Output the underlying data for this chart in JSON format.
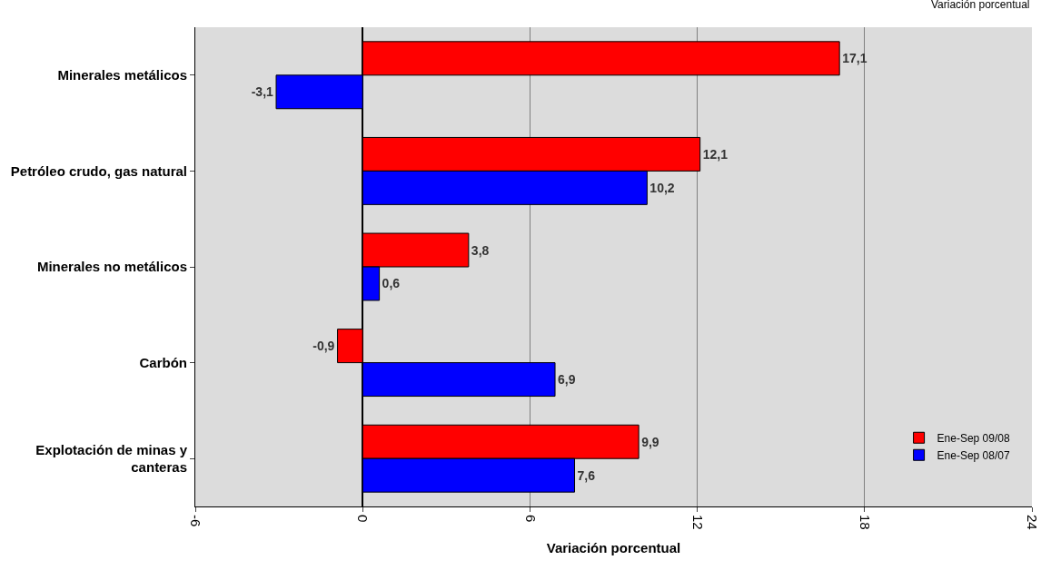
{
  "chart_data": {
    "type": "bar",
    "orientation": "horizontal",
    "xlabel": "Variación porcentual",
    "annotations": [
      "Variación porcentual"
    ],
    "categories": [
      "Minerales metálicos",
      "Petróleo crudo, gas natural",
      "Minerales no metálicos",
      "Carbón",
      "Explotación de minas y canteras"
    ],
    "series": [
      {
        "name": "Ene-Sep 09/08",
        "color": "#ff0000",
        "values": [
          17.1,
          12.1,
          3.8,
          -0.9,
          9.9
        ],
        "value_labels": [
          "17,1",
          "12,1",
          "3,8",
          "-0,9",
          "9,9"
        ]
      },
      {
        "name": "Ene-Sep 08/07",
        "color": "#0000ff",
        "values": [
          -3.1,
          10.2,
          0.6,
          6.9,
          7.6
        ],
        "value_labels": [
          "-3,1",
          "10,2",
          "0,6",
          "6,9",
          "7,6"
        ]
      }
    ],
    "xlim": [
      -6,
      24
    ],
    "xticks": [
      -6,
      0,
      6,
      12,
      18,
      24
    ],
    "grid": "x",
    "legend": "bottom right"
  }
}
